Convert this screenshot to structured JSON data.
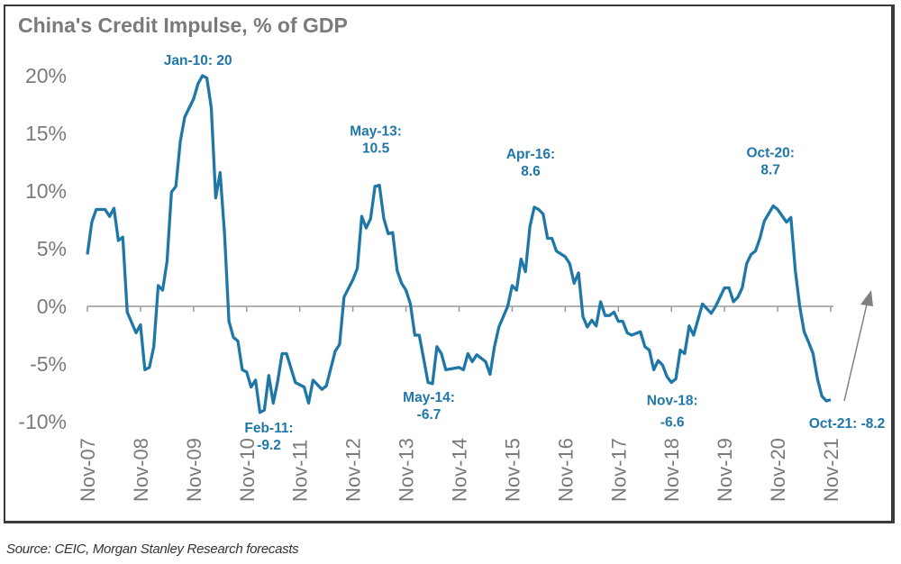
{
  "chart_data": {
    "type": "line",
    "title": "China's Credit Impulse, % of GDP",
    "xlabel": "",
    "ylabel": "",
    "ylim": [
      -10,
      20
    ],
    "y_ticks": [
      "20%",
      "15%",
      "10%",
      "5%",
      "0%",
      "-5%",
      "-10%"
    ],
    "y_tick_values": [
      20,
      15,
      10,
      5,
      0,
      -5,
      -10
    ],
    "x_ticks": [
      "Nov-07",
      "Nov-08",
      "Nov-09",
      "Nov-10",
      "Nov-11",
      "Nov-12",
      "Nov-13",
      "Nov-14",
      "Nov-15",
      "Nov-16",
      "Nov-17",
      "Nov-18",
      "Nov-19",
      "Nov-20",
      "Nov-21"
    ],
    "x_range": [
      "2007-11",
      "2021-11"
    ],
    "grid": false,
    "color": "#1f77a8",
    "series": [
      {
        "points": [
          [
            "2007-11",
            4.5
          ],
          [
            "2007-12",
            7.3
          ],
          [
            "2008-01",
            8.4
          ],
          [
            "2008-03",
            8.4
          ],
          [
            "2008-04",
            7.8
          ],
          [
            "2008-05",
            8.5
          ],
          [
            "2008-06",
            5.7
          ],
          [
            "2008-07",
            6.0
          ],
          [
            "2008-08",
            -0.5
          ],
          [
            "2008-10",
            -2.3
          ],
          [
            "2008-11",
            -1.6
          ],
          [
            "2008-12",
            -5.5
          ],
          [
            "2009-01",
            -5.3
          ],
          [
            "2009-02",
            -3.5
          ],
          [
            "2009-03",
            1.8
          ],
          [
            "2009-04",
            1.4
          ],
          [
            "2009-05",
            3.9
          ],
          [
            "2009-06",
            9.9
          ],
          [
            "2009-07",
            10.4
          ],
          [
            "2009-08",
            14.3
          ],
          [
            "2009-09",
            16.4
          ],
          [
            "2009-11",
            18.0
          ],
          [
            "2009-12",
            19.3
          ],
          [
            "2010-01",
            20.0
          ],
          [
            "2010-02",
            19.8
          ],
          [
            "2010-03",
            17.2
          ],
          [
            "2010-04",
            9.4
          ],
          [
            "2010-05",
            11.6
          ],
          [
            "2010-06",
            6.3
          ],
          [
            "2010-07",
            -1.3
          ],
          [
            "2010-08",
            -2.7
          ],
          [
            "2010-09",
            -3.0
          ],
          [
            "2010-10",
            -5.5
          ],
          [
            "2010-11",
            -5.7
          ],
          [
            "2010-12",
            -7.0
          ],
          [
            "2011-01",
            -6.4
          ],
          [
            "2011-02",
            -9.2
          ],
          [
            "2011-03",
            -9.0
          ],
          [
            "2011-04",
            -6.0
          ],
          [
            "2011-05",
            -8.4
          ],
          [
            "2011-06",
            -6.5
          ],
          [
            "2011-07",
            -4.1
          ],
          [
            "2011-08",
            -4.1
          ],
          [
            "2011-10",
            -6.6
          ],
          [
            "2011-12",
            -7.0
          ],
          [
            "2012-01",
            -8.4
          ],
          [
            "2012-02",
            -6.4
          ],
          [
            "2012-04",
            -7.2
          ],
          [
            "2012-05",
            -6.9
          ],
          [
            "2012-07",
            -3.9
          ],
          [
            "2012-08",
            -3.3
          ],
          [
            "2012-09",
            0.8
          ],
          [
            "2012-11",
            2.3
          ],
          [
            "2012-12",
            3.3
          ],
          [
            "2013-01",
            7.8
          ],
          [
            "2013-02",
            6.8
          ],
          [
            "2013-03",
            7.6
          ],
          [
            "2013-04",
            10.4
          ],
          [
            "2013-05",
            10.5
          ],
          [
            "2013-06",
            7.6
          ],
          [
            "2013-07",
            6.3
          ],
          [
            "2013-08",
            6.4
          ],
          [
            "2013-09",
            3.1
          ],
          [
            "2013-10",
            2.0
          ],
          [
            "2013-11",
            1.4
          ],
          [
            "2013-12",
            0.2
          ],
          [
            "2014-01",
            -2.5
          ],
          [
            "2014-02",
            -2.5
          ],
          [
            "2014-04",
            -6.6
          ],
          [
            "2014-05",
            -6.7
          ],
          [
            "2014-06",
            -3.5
          ],
          [
            "2014-07",
            -4.1
          ],
          [
            "2014-08",
            -5.5
          ],
          [
            "2014-11",
            -5.3
          ],
          [
            "2014-12",
            -5.5
          ],
          [
            "2015-01",
            -4.1
          ],
          [
            "2015-02",
            -4.8
          ],
          [
            "2015-03",
            -4.2
          ],
          [
            "2015-04",
            -4.5
          ],
          [
            "2015-05",
            -4.8
          ],
          [
            "2015-06",
            -5.9
          ],
          [
            "2015-07",
            -3.5
          ],
          [
            "2015-08",
            -1.8
          ],
          [
            "2015-10",
            0.0
          ],
          [
            "2015-11",
            1.8
          ],
          [
            "2015-12",
            1.4
          ],
          [
            "2016-01",
            4.1
          ],
          [
            "2016-02",
            3.0
          ],
          [
            "2016-03",
            6.9
          ],
          [
            "2016-04",
            8.6
          ],
          [
            "2016-05",
            8.4
          ],
          [
            "2016-06",
            8.0
          ],
          [
            "2016-07",
            5.9
          ],
          [
            "2016-08",
            5.9
          ],
          [
            "2016-09",
            4.8
          ],
          [
            "2016-11",
            4.3
          ],
          [
            "2016-12",
            3.7
          ],
          [
            "2017-01",
            2.0
          ],
          [
            "2017-02",
            2.9
          ],
          [
            "2017-03",
            -0.9
          ],
          [
            "2017-04",
            -1.8
          ],
          [
            "2017-05",
            -1.2
          ],
          [
            "2017-06",
            -1.7
          ],
          [
            "2017-07",
            0.4
          ],
          [
            "2017-08",
            -0.8
          ],
          [
            "2017-09",
            -0.8
          ],
          [
            "2017-10",
            -0.5
          ],
          [
            "2017-11",
            -1.3
          ],
          [
            "2017-12",
            -1.3
          ],
          [
            "2018-01",
            -2.3
          ],
          [
            "2018-02",
            -2.5
          ],
          [
            "2018-04",
            -2.2
          ],
          [
            "2018-05",
            -3.5
          ],
          [
            "2018-06",
            -3.8
          ],
          [
            "2018-07",
            -5.5
          ],
          [
            "2018-08",
            -4.7
          ],
          [
            "2018-09",
            -5.1
          ],
          [
            "2018-10",
            -6.1
          ],
          [
            "2018-11",
            -6.6
          ],
          [
            "2018-12",
            -6.3
          ],
          [
            "2019-01",
            -3.8
          ],
          [
            "2019-02",
            -4.1
          ],
          [
            "2019-03",
            -1.7
          ],
          [
            "2019-04",
            -2.5
          ],
          [
            "2019-06",
            0.2
          ],
          [
            "2019-08",
            -0.6
          ],
          [
            "2019-09",
            0.0
          ],
          [
            "2019-11",
            1.6
          ],
          [
            "2019-12",
            1.6
          ],
          [
            "2020-01",
            0.4
          ],
          [
            "2020-02",
            0.8
          ],
          [
            "2020-03",
            1.6
          ],
          [
            "2020-04",
            3.7
          ],
          [
            "2020-05",
            4.5
          ],
          [
            "2020-06",
            4.8
          ],
          [
            "2020-07",
            5.9
          ],
          [
            "2020-08",
            7.4
          ],
          [
            "2020-10",
            8.7
          ],
          [
            "2020-11",
            8.4
          ],
          [
            "2021-01",
            7.3
          ],
          [
            "2021-02",
            7.7
          ],
          [
            "2021-03",
            3.1
          ],
          [
            "2021-04",
            0.0
          ],
          [
            "2021-05",
            -2.2
          ],
          [
            "2021-06",
            -3.1
          ],
          [
            "2021-07",
            -4.1
          ],
          [
            "2021-08",
            -6.3
          ],
          [
            "2021-09",
            -7.8
          ],
          [
            "2021-10",
            -8.2
          ],
          [
            "2021-11",
            -8.1
          ]
        ]
      }
    ],
    "annotations": [
      {
        "lines": [
          "Jan-10: 20"
        ],
        "date": "2010-01",
        "value": 20
      },
      {
        "lines": [
          "Feb-11:",
          "-9.2"
        ],
        "date": "2011-02",
        "value": -9.2
      },
      {
        "lines": [
          "May-13:",
          "10.5"
        ],
        "date": "2013-05",
        "value": 10.5
      },
      {
        "lines": [
          "May-14:",
          "-6.7"
        ],
        "date": "2014-05",
        "value": -6.7
      },
      {
        "lines": [
          "Apr-16:",
          "8.6"
        ],
        "date": "2016-04",
        "value": 8.6
      },
      {
        "lines": [
          "Nov-18:",
          "-6.6"
        ],
        "date": "2018-11",
        "value": -6.6
      },
      {
        "lines": [
          "Oct-20:",
          "8.7"
        ],
        "date": "2020-10",
        "value": 8.7
      },
      {
        "lines": [
          "Oct-21: -8.2"
        ],
        "date": "2021-10",
        "value": -8.2
      }
    ],
    "arrow_color": "#808080",
    "arrow_direction": "up"
  },
  "source": "Source: CEIC, Morgan Stanley Research forecasts"
}
